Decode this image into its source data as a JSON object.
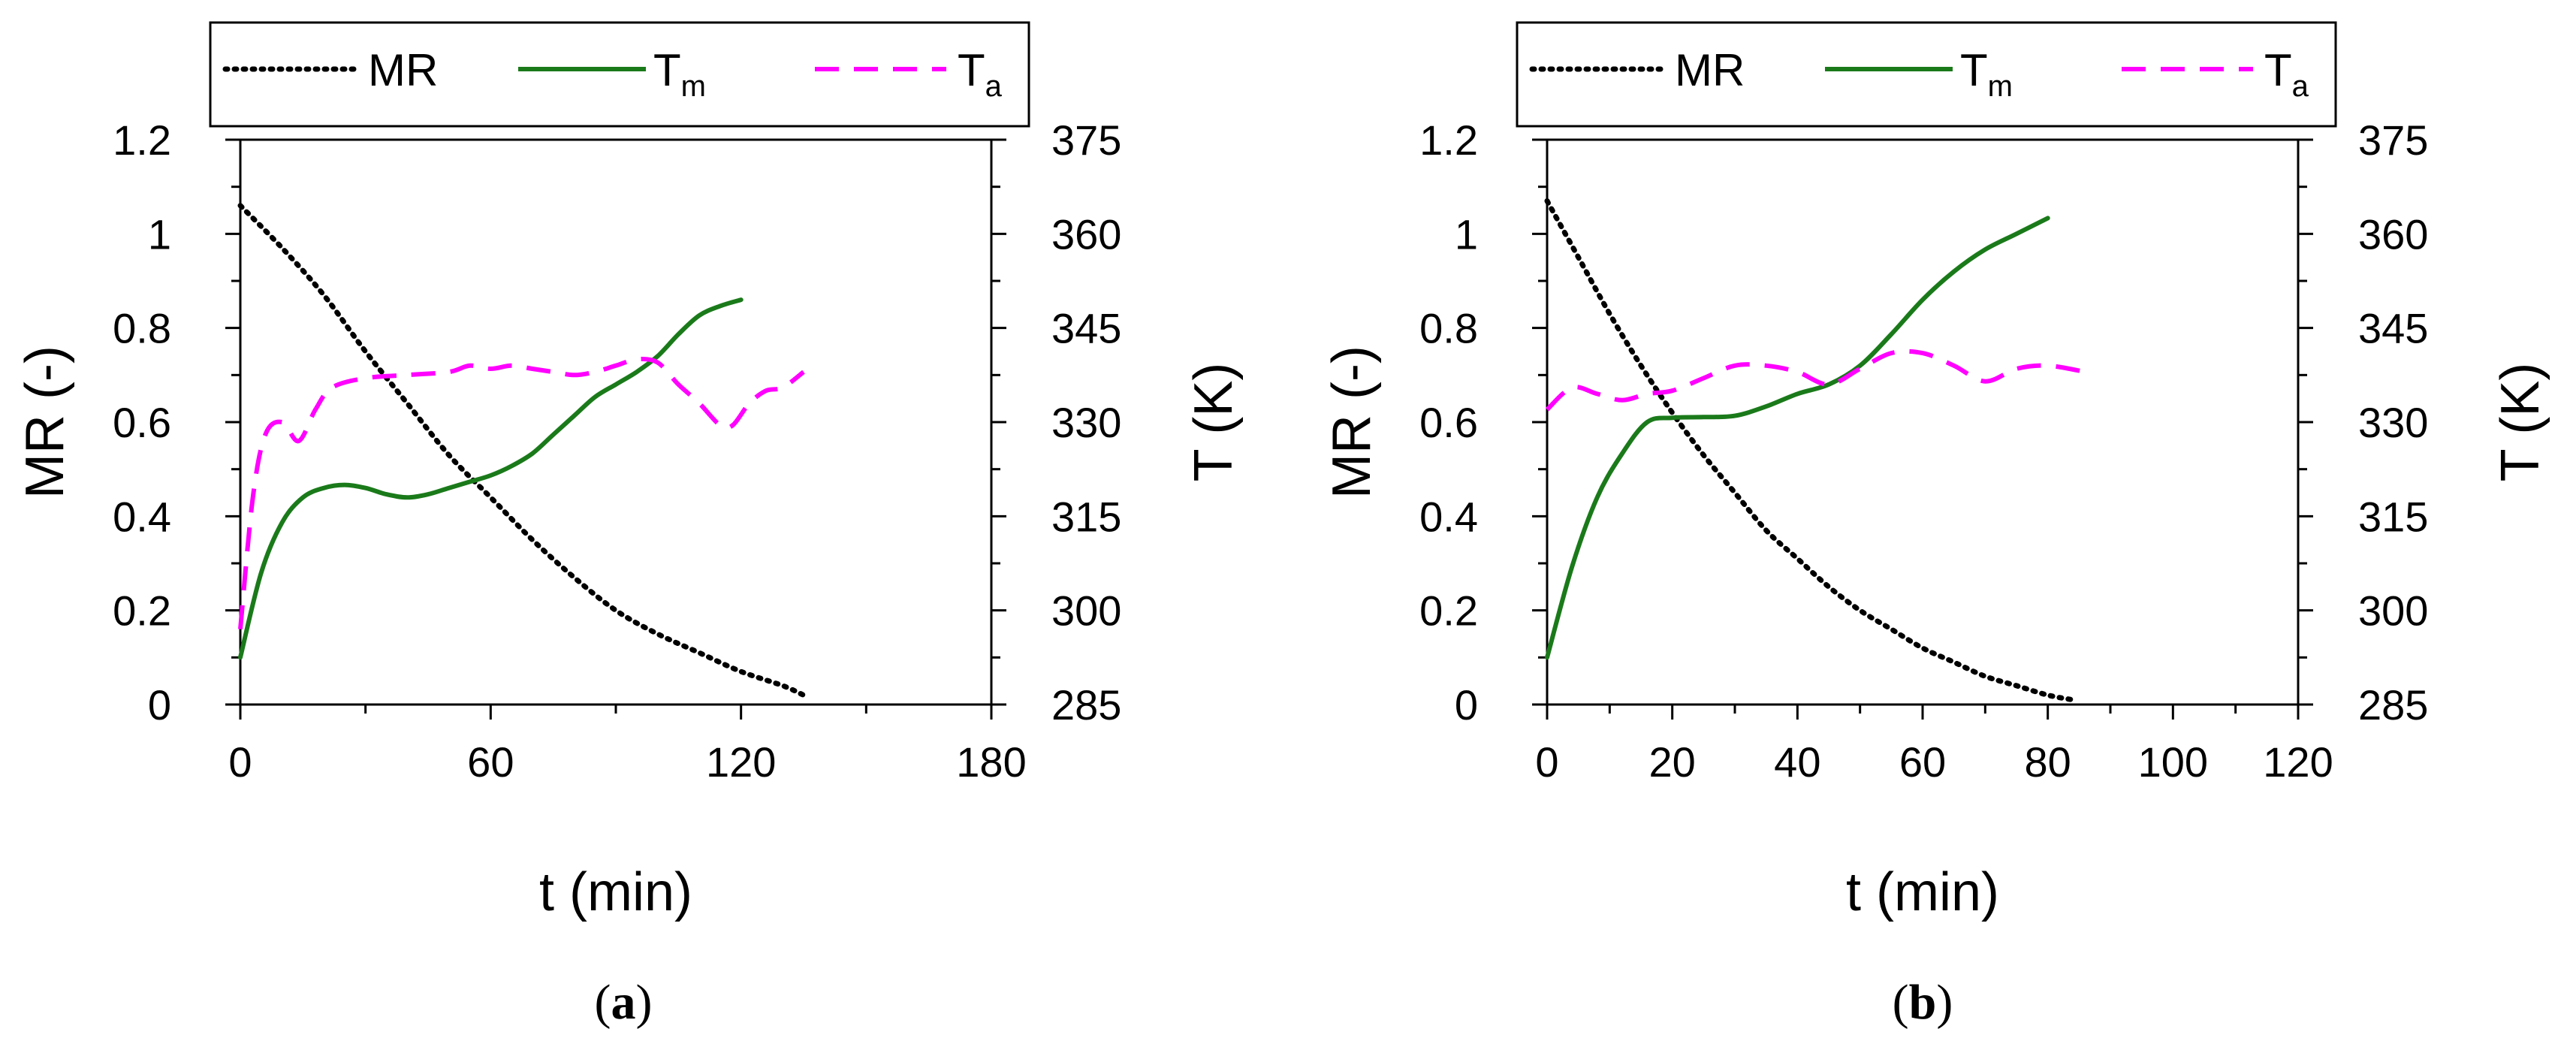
{
  "figure": {
    "panel_labels": [
      {
        "open": "(",
        "letter": "a",
        "close": ")"
      },
      {
        "open": "(",
        "letter": "b",
        "close": ")"
      }
    ]
  },
  "chart_data": [
    {
      "type": "line",
      "panel": "a",
      "xlabel": "t (min)",
      "ylabel": "MR (-)",
      "y2label": "T (K)",
      "xlim": [
        0,
        180
      ],
      "ylim": [
        0,
        1.2
      ],
      "y2lim": [
        285,
        375
      ],
      "xticks": [
        "0",
        "60",
        "120",
        "180"
      ],
      "xtick_values": [
        0,
        60,
        120,
        180
      ],
      "yticks": [
        "0",
        "0.2",
        "0.4",
        "0.6",
        "0.8",
        "1",
        "1.2"
      ],
      "ytick_values": [
        0,
        0.2,
        0.4,
        0.6,
        0.8,
        1,
        1.2
      ],
      "y2ticks": [
        "285",
        "300",
        "315",
        "330",
        "345",
        "360",
        "375"
      ],
      "y2tick_values": [
        285,
        300,
        315,
        330,
        345,
        360,
        375
      ],
      "legend": {
        "placement": "top",
        "entries": [
          {
            "label": "MR",
            "sub": "",
            "series": "MR"
          },
          {
            "label": "T",
            "sub": "m",
            "series": "Tm"
          },
          {
            "label": "T",
            "sub": "a",
            "series": "Ta"
          }
        ]
      },
      "series": [
        {
          "name": "MR",
          "axis": "left",
          "color": "#000000",
          "style": "dotted",
          "x": [
            0,
            10,
            20,
            30,
            40,
            50,
            60,
            70,
            80,
            90,
            100,
            110,
            120,
            130,
            135
          ],
          "y": [
            1.06,
            0.97,
            0.87,
            0.75,
            0.64,
            0.53,
            0.44,
            0.35,
            0.27,
            0.2,
            0.15,
            0.11,
            0.07,
            0.04,
            0.02
          ]
        },
        {
          "name": "Tm",
          "axis": "right",
          "color": "#1a7a1a",
          "style": "solid",
          "x": [
            0,
            5,
            10,
            15,
            20,
            25,
            30,
            35,
            40,
            45,
            50,
            55,
            60,
            65,
            70,
            75,
            80,
            85,
            90,
            95,
            100,
            105,
            110,
            115,
            120
          ],
          "y": [
            292.5,
            306,
            314,
            318,
            319.5,
            320,
            319.5,
            318.5,
            318,
            318.5,
            319.5,
            320.5,
            321.5,
            323,
            325,
            328,
            331,
            334,
            336,
            338,
            340.5,
            344,
            347,
            348.5,
            349.5
          ]
        },
        {
          "name": "Ta",
          "axis": "right",
          "color": "#ff00ff",
          "style": "dashed",
          "x": [
            0,
            3,
            6,
            10,
            14,
            18,
            22,
            30,
            40,
            50,
            55,
            60,
            65,
            70,
            75,
            80,
            85,
            90,
            95,
            100,
            105,
            110,
            115,
            118,
            122,
            126,
            130,
            135
          ],
          "y": [
            297,
            318,
            328,
            330,
            327,
            332,
            335.5,
            337,
            337.5,
            338,
            339,
            338.5,
            339,
            338.5,
            338,
            337.5,
            338,
            339,
            340,
            339.5,
            336,
            333,
            329.5,
            329.5,
            333,
            335,
            335.5,
            338
          ]
        }
      ]
    },
    {
      "type": "line",
      "panel": "b",
      "xlabel": "t (min)",
      "ylabel": "MR (-)",
      "y2label": "T (K)",
      "xlim": [
        0,
        120
      ],
      "ylim": [
        0,
        1.2
      ],
      "y2lim": [
        285,
        375
      ],
      "xticks": [
        "0",
        "20",
        "40",
        "60",
        "80",
        "100",
        "120"
      ],
      "xtick_values": [
        0,
        20,
        40,
        60,
        80,
        100,
        120
      ],
      "yticks": [
        "0",
        "0.2",
        "0.4",
        "0.6",
        "0.8",
        "1",
        "1.2"
      ],
      "ytick_values": [
        0,
        0.2,
        0.4,
        0.6,
        0.8,
        1,
        1.2
      ],
      "y2ticks": [
        "285",
        "300",
        "315",
        "330",
        "345",
        "360",
        "375"
      ],
      "y2tick_values": [
        285,
        300,
        315,
        330,
        345,
        360,
        375
      ],
      "legend": {
        "placement": "top",
        "entries": [
          {
            "label": "MR",
            "sub": "",
            "series": "MR"
          },
          {
            "label": "T",
            "sub": "m",
            "series": "Tm"
          },
          {
            "label": "T",
            "sub": "a",
            "series": "Ta"
          }
        ]
      },
      "series": [
        {
          "name": "MR",
          "axis": "left",
          "color": "#000000",
          "style": "dotted",
          "x": [
            0,
            5,
            10,
            15,
            20,
            25,
            30,
            35,
            40,
            45,
            50,
            55,
            60,
            65,
            70,
            75,
            80,
            84
          ],
          "y": [
            1.07,
            0.95,
            0.83,
            0.72,
            0.62,
            0.53,
            0.45,
            0.37,
            0.31,
            0.25,
            0.2,
            0.16,
            0.12,
            0.09,
            0.06,
            0.04,
            0.02,
            0.01
          ]
        },
        {
          "name": "Tm",
          "axis": "right",
          "color": "#1a7a1a",
          "style": "solid",
          "x": [
            0,
            4,
            8,
            12,
            16,
            20,
            25,
            30,
            35,
            40,
            45,
            50,
            55,
            60,
            65,
            70,
            75,
            80
          ],
          "y": [
            292.5,
            307,
            318,
            325,
            330,
            330.7,
            330.8,
            331,
            332.5,
            334.5,
            336,
            339,
            344,
            349.5,
            354,
            357.5,
            360,
            362.5
          ]
        },
        {
          "name": "Ta",
          "axis": "right",
          "color": "#ff00ff",
          "style": "dashed",
          "x": [
            0,
            4,
            8,
            12,
            16,
            20,
            25,
            30,
            35,
            40,
            45,
            50,
            55,
            60,
            65,
            70,
            75,
            80,
            86
          ],
          "y": [
            332,
            335.5,
            334.5,
            333.5,
            334.5,
            335,
            337,
            339,
            339,
            338,
            336,
            338.5,
            341,
            341,
            339,
            336.5,
            338.5,
            339,
            338
          ]
        }
      ]
    }
  ]
}
